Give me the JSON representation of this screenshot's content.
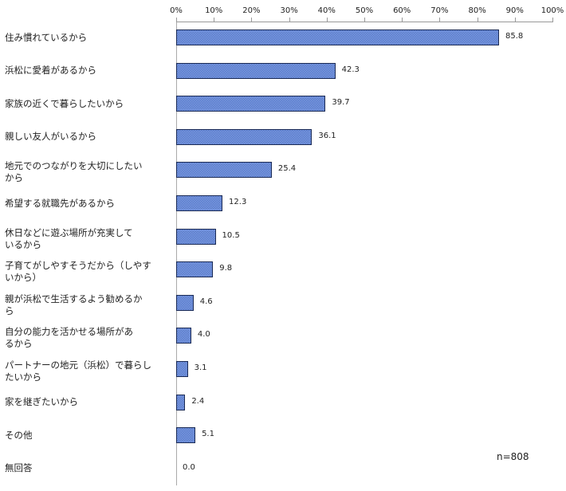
{
  "chart_data": {
    "type": "bar",
    "orientation": "horizontal",
    "title": "",
    "xlabel": "",
    "ylabel": "",
    "xlim": [
      0,
      100
    ],
    "x_ticks": [
      "0%",
      "10%",
      "20%",
      "30%",
      "40%",
      "50%",
      "60%",
      "70%",
      "80%",
      "90%",
      "100%"
    ],
    "grid": false,
    "legend": null,
    "categories": [
      "住み慣れているから",
      "浜松に愛着があるから",
      "家族の近くで暮らしたいから",
      "親しい友人がいるから",
      "地元でのつながりを大切にしたいから",
      "希望する就職先があるから",
      "休日などに遊ぶ場所が充実しているから",
      "子育てがしやすそうだから（しやすいから）",
      "親が浜松で生活するよう勧めるから",
      "自分の能力を活かせる場所があるから",
      "パートナーの地元（浜松）で暮らしたいから",
      "家を継ぎたいから",
      "その他",
      "無回答"
    ],
    "values": [
      85.8,
      42.3,
      39.7,
      36.1,
      25.4,
      12.3,
      10.5,
      9.8,
      4.6,
      4.0,
      3.1,
      2.4,
      5.1,
      0.0
    ],
    "value_labels": [
      "85.8",
      "42.3",
      "39.7",
      "36.1",
      "25.4",
      "12.3",
      "10.5",
      "9.8",
      "4.6",
      "4.0",
      "3.1",
      "2.4",
      "5.1",
      "0.0"
    ],
    "display_labels": [
      [
        "住み慣れているから"
      ],
      [
        "浜松に愛着があるから"
      ],
      [
        "家族の近くで暮らしたいから"
      ],
      [
        "親しい友人がいるから"
      ],
      [
        "地元でのつながりを大切にしたい",
        "から"
      ],
      [
        "希望する就職先があるから"
      ],
      [
        "休日などに遊ぶ場所が充実して",
        "いるから"
      ],
      [
        "子育てがしやすそうだから（しやす",
        "いから）"
      ],
      [
        "親が浜松で生活するよう勧めるか",
        "ら"
      ],
      [
        "自分の能力を活かせる場所があ",
        "るから"
      ],
      [
        "パートナーの地元（浜松）で暮らし",
        "たいから"
      ],
      [
        "家を継ぎたいから"
      ],
      [
        "その他"
      ],
      [
        "無回答"
      ]
    ],
    "annotation": "n=808",
    "bar_color": "#5b7fd1",
    "bar_border_color": "#1a2a55"
  }
}
